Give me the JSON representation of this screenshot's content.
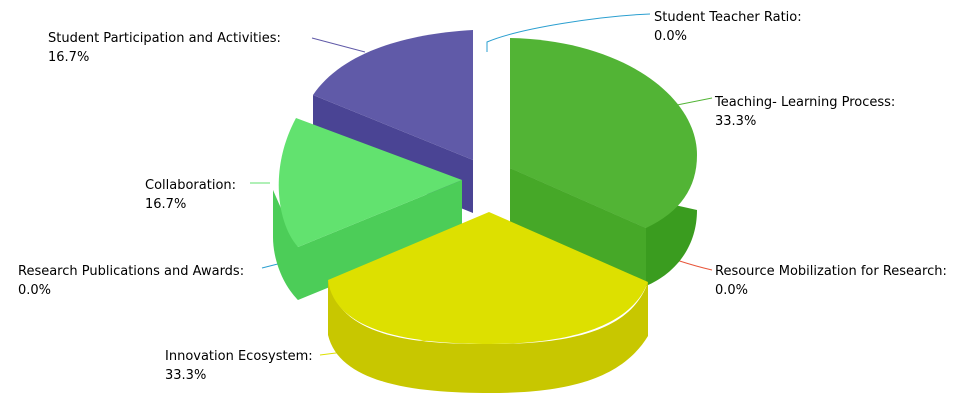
{
  "chart_data": {
    "type": "pie",
    "style": "3d-exploded",
    "title": "",
    "legend": "none",
    "slices": [
      {
        "name": "Student Teacher Ratio:",
        "value_label": "0.0%",
        "value": 0.0,
        "color": "#2b9fd0"
      },
      {
        "name": "Teaching- Learning Process:",
        "value_label": "33.3%",
        "value": 33.3,
        "color": "#52b435"
      },
      {
        "name": "Resource Mobilization for Research:",
        "value_label": "0.0%",
        "value": 0.0,
        "color": "#e8553a"
      },
      {
        "name": "Innovation Ecosystem:",
        "value_label": "33.3%",
        "value": 33.3,
        "color": "#dde000"
      },
      {
        "name": "Research Publications and Awards:",
        "value_label": "0.0%",
        "value": 0.0,
        "color": "#2b9fd0"
      },
      {
        "name": "Collaboration:",
        "value_label": "16.7%",
        "value": 16.7,
        "color": "#62e26f"
      },
      {
        "name": "Student Participation and Activities:",
        "value_label": "16.7%",
        "value": 16.7,
        "color": "#605aa8"
      }
    ]
  }
}
